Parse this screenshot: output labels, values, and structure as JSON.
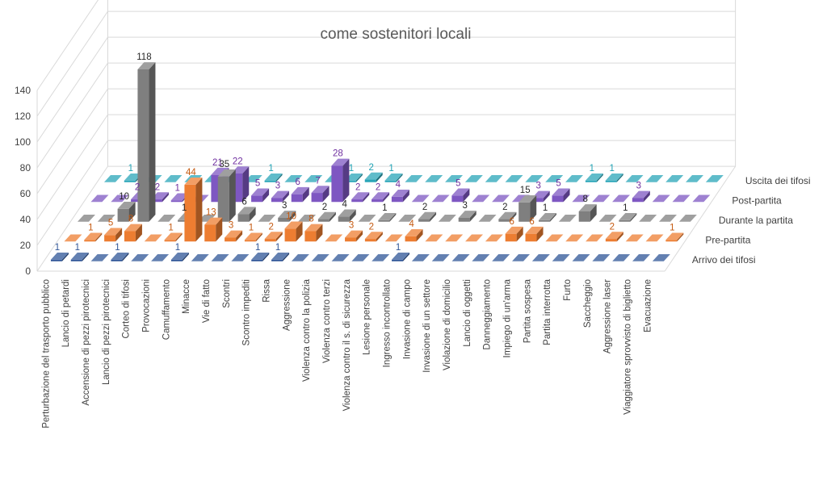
{
  "chart_data": {
    "type": "bar",
    "title": "come sostenitori locali",
    "zlim": [
      0,
      140
    ],
    "z_ticks": [
      0,
      20,
      40,
      60,
      80,
      100,
      120,
      140
    ],
    "categories": [
      "Perturbazione del trasporto pubblico",
      "Lancio di petardi",
      "Accensione di pezzi pirotecnici",
      "Lancio di pezzi pirotecnici",
      "Corteo di tifosi",
      "Provocazioni",
      "Camuffamento",
      "Minacce",
      "Vie di fatto",
      "Scontri",
      "Scontro impediti",
      "Rissa",
      "Aggressione",
      "Violenza contro la polizia",
      "Violenza contro terzi",
      "Violenza contro il s. di sicurezza",
      "Lesione personale",
      "Ingresso incontrollato",
      "Invasione di campo",
      "Invasione di un settore",
      "Violazione di domicilio",
      "Lancio di oggetti",
      "Danneggiamento",
      "Impiego di un'arma",
      "Partita sospesa",
      "Partita interrotta",
      "Furto",
      "Saccheggio",
      "Aggressione laser",
      "Viaggiatore sprovvisto di biglietto",
      "Evacuazione"
    ],
    "series": [
      {
        "name": "Arrivo dei tifosi",
        "color": "#2f5597",
        "label_color": "#2f5597",
        "values": [
          1,
          1,
          0,
          1,
          0,
          0,
          1,
          0,
          0,
          0,
          1,
          1,
          0,
          0,
          0,
          0,
          0,
          1,
          0,
          0,
          0,
          0,
          0,
          0,
          0,
          0,
          0,
          0,
          0,
          0,
          0
        ]
      },
      {
        "name": "Pre-partita",
        "color": "#ed7d31",
        "label_color": "#c55a11",
        "values": [
          0,
          1,
          5,
          8,
          0,
          1,
          44,
          13,
          3,
          1,
          2,
          10,
          8,
          0,
          3,
          2,
          0,
          4,
          0,
          0,
          0,
          0,
          6,
          6,
          0,
          0,
          0,
          2,
          0,
          0,
          1
        ]
      },
      {
        "name": "Durante la partita",
        "color": "#7f7f7f",
        "label_color": "#262626",
        "values": [
          0,
          0,
          10,
          118,
          0,
          1,
          0,
          35,
          6,
          0,
          3,
          0,
          2,
          4,
          0,
          1,
          0,
          2,
          0,
          3,
          0,
          2,
          15,
          1,
          0,
          8,
          0,
          1,
          0,
          0,
          0
        ]
      },
      {
        "name": "Post-partita",
        "color": "#7e57c2",
        "label_color": "#7030a0",
        "values": [
          0,
          0,
          2,
          2,
          1,
          0,
          21,
          22,
          5,
          3,
          6,
          7,
          28,
          2,
          2,
          4,
          0,
          0,
          5,
          0,
          0,
          0,
          3,
          5,
          0,
          0,
          0,
          3,
          0,
          0,
          0
        ]
      },
      {
        "name": "Uscita dei tifosi",
        "color": "#2aa5b8",
        "label_color": "#1fa3b5",
        "values": [
          0,
          1,
          0,
          0,
          0,
          0,
          0,
          0,
          1,
          0,
          0,
          0,
          1,
          2,
          1,
          0,
          0,
          0,
          0,
          0,
          0,
          0,
          0,
          0,
          1,
          1,
          0,
          0,
          0,
          0,
          0
        ]
      }
    ]
  }
}
